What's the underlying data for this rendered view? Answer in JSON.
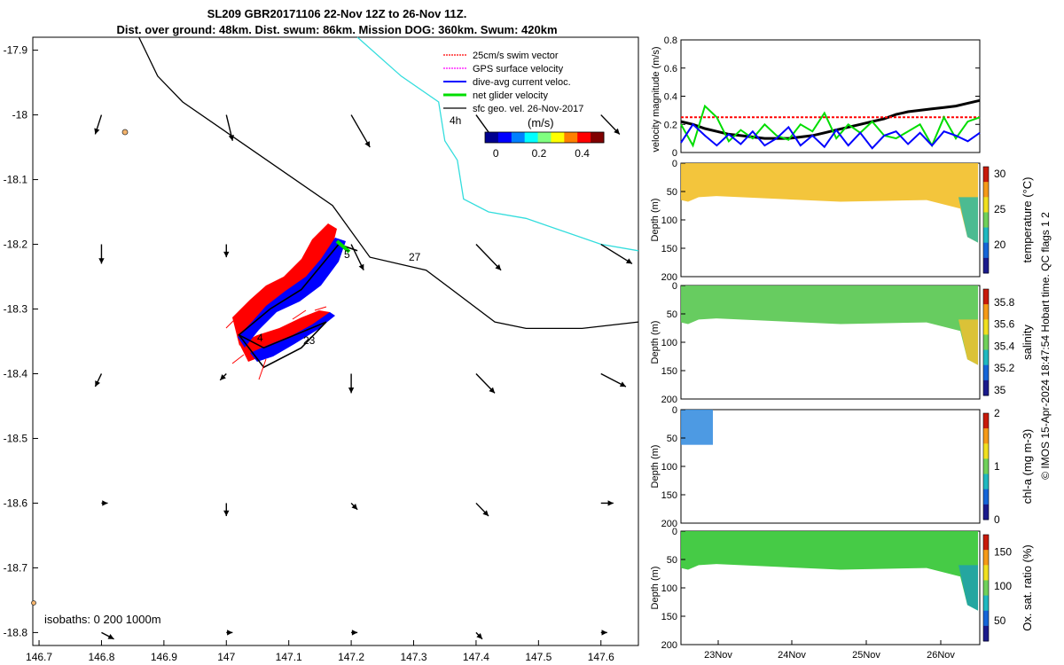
{
  "header": {
    "title_line1": "SL209 GBR20171106 22-Nov 12Z to 26-Nov 11Z.",
    "title_line2": "Dist. over ground: 48km. Dist. swum: 86km. Mission DOG: 360km. Swum: 420km"
  },
  "map": {
    "xlim": [
      146.69,
      147.66
    ],
    "ylim": [
      -18.82,
      -17.88
    ],
    "x_ticks": [
      "146.7",
      "146.8",
      "146.9",
      "147",
      "147.1",
      "147.2",
      "147.3",
      "147.4",
      "147.5",
      "147.6"
    ],
    "x_tick_values": [
      146.7,
      146.8,
      146.9,
      147.0,
      147.1,
      147.2,
      147.3,
      147.4,
      147.5,
      147.6
    ],
    "y_ticks": [
      "-17.9",
      "-18",
      "-18.1",
      "-18.2",
      "-18.3",
      "-18.4",
      "-18.5",
      "-18.6",
      "-18.7",
      "-18.8"
    ],
    "y_tick_values": [
      -17.9,
      -18.0,
      -18.1,
      -18.2,
      -18.3,
      -18.4,
      -18.5,
      -18.6,
      -18.7,
      -18.8
    ],
    "isobaths_label": "isobaths: 0   200  1000m",
    "contour_labels": [
      "4h",
      "27",
      "4",
      "23",
      "5"
    ],
    "legend": [
      {
        "label": "25cm/s swim vector",
        "color": "#ff0000"
      },
      {
        "label": "GPS surface velocity",
        "color": "#ff00ff"
      },
      {
        "label": "dive-avg current veloc.",
        "color": "#0000ff"
      },
      {
        "label": "net glider velocity",
        "color": "#00dd00"
      },
      {
        "label": "sfc geo. vel. 26-Nov-2017",
        "color": "#000000"
      }
    ],
    "colorbar": {
      "unit": "(m/s)",
      "ticks": [
        "0",
        "0.2",
        "0.4"
      ],
      "range": [
        -0.05,
        0.5
      ]
    },
    "colors": {
      "contour_200": "#000000",
      "contour_1000": "#33dddd",
      "glider_red": "#ff0000",
      "glider_blue": "#0000ff"
    }
  },
  "velocity_panel": {
    "ylabel": "velocity magnitude (m/s)",
    "yticks": [
      "0",
      "0.2",
      "0.4",
      "0.6",
      "0.8"
    ],
    "ylim": [
      0,
      0.8
    ],
    "series": [
      {
        "color": "#000000",
        "values": [
          0.22,
          0.2,
          0.17,
          0.15,
          0.13,
          0.12,
          0.11,
          0.1,
          0.1,
          0.1,
          0.11,
          0.12,
          0.14,
          0.16,
          0.18,
          0.2,
          0.22,
          0.24,
          0.27,
          0.29,
          0.3,
          0.31,
          0.32,
          0.33,
          0.35,
          0.37
        ]
      },
      {
        "color": "#ff0000",
        "values": [
          0.25,
          0.25,
          0.25,
          0.25,
          0.25,
          0.25,
          0.25,
          0.25,
          0.25,
          0.25,
          0.25,
          0.25,
          0.25,
          0.25,
          0.25,
          0.25,
          0.25,
          0.25,
          0.25,
          0.25,
          0.25,
          0.25,
          0.25,
          0.25,
          0.25,
          0.25
        ]
      },
      {
        "color": "#00dd00",
        "values": [
          0.2,
          0.05,
          0.33,
          0.25,
          0.08,
          0.16,
          0.1,
          0.2,
          0.12,
          0.09,
          0.2,
          0.15,
          0.28,
          0.1,
          0.2,
          0.14,
          0.22,
          0.12,
          0.1,
          0.15,
          0.2,
          0.05,
          0.25,
          0.1,
          0.22,
          0.25
        ]
      },
      {
        "color": "#0000ff",
        "values": [
          0.07,
          0.2,
          0.12,
          0.05,
          0.13,
          0.06,
          0.15,
          0.05,
          0.1,
          0.18,
          0.05,
          0.12,
          0.04,
          0.16,
          0.05,
          0.14,
          0.03,
          0.12,
          0.15,
          0.06,
          0.14,
          0.05,
          0.15,
          0.12,
          0.08,
          0.14
        ]
      }
    ]
  },
  "profile_panels": [
    {
      "name": "temperature",
      "label": "temperature (°C)",
      "cbar_ticks": [
        "30",
        "25",
        "20"
      ],
      "cbar_values": [
        30,
        25,
        20
      ],
      "cbar_range": [
        16,
        31
      ],
      "fill": "#f2c232",
      "deep": "#2eb8a0"
    },
    {
      "name": "salinity",
      "label": "salinity",
      "cbar_ticks": [
        "35.8",
        "35.6",
        "35.4",
        "35.2",
        "35"
      ],
      "cbar_values": [
        35.8,
        35.6,
        35.4,
        35.2,
        35.0
      ],
      "cbar_range": [
        34.95,
        35.92
      ],
      "fill": "#5fc957",
      "deep": "#f0c030"
    },
    {
      "name": "chl-a",
      "label": "chl-a (mg m-3)",
      "cbar_ticks": [
        "2",
        "1",
        "0"
      ],
      "cbar_values": [
        2,
        1,
        0
      ],
      "cbar_range": [
        0,
        2
      ],
      "fill": "#3a8fe0",
      "deep": "#3a8fe0"
    },
    {
      "name": "ox-sat",
      "label": "Ox. sat. ratio (%)",
      "cbar_ticks": [
        "150",
        "100",
        "50"
      ],
      "cbar_values": [
        150,
        100,
        50
      ],
      "cbar_range": [
        20,
        175
      ],
      "fill": "#3cc83c",
      "deep": "#20a0b0"
    }
  ],
  "depth_axis": {
    "ylabel": "Depth (m)",
    "ticks": [
      "0",
      "50",
      "100",
      "150",
      "200"
    ],
    "values": [
      0,
      50,
      100,
      150,
      200
    ]
  },
  "time_axis": {
    "labels": [
      "23Nov",
      "24Nov",
      "25Nov",
      "26Nov"
    ]
  },
  "credit": "© IMOS 15-Apr-2024 18:47:54 Hobart time. QC flags 1  2",
  "chart_data": {
    "type": "scatter",
    "title": "SL209 GBR20171106 22-Nov 12Z to 26-Nov 11Z.",
    "subtitle": "Dist. over ground: 48km. Dist. swum: 86km. Mission DOG: 360km. Swum: 420km",
    "xlim": [
      146.69,
      147.66
    ],
    "ylim": [
      -18.82,
      -17.88
    ],
    "vectors": [
      {
        "x": 146.8,
        "y": -18.0,
        "dx": -0.01,
        "dy": -0.03
      },
      {
        "x": 147.0,
        "y": -18.0,
        "dx": 0.01,
        "dy": -0.04
      },
      {
        "x": 147.2,
        "y": -18.0,
        "dx": 0.03,
        "dy": -0.05
      },
      {
        "x": 147.4,
        "y": -18.0,
        "dx": 0.03,
        "dy": -0.04
      },
      {
        "x": 147.6,
        "y": -18.0,
        "dx": 0.03,
        "dy": -0.03
      },
      {
        "x": 146.8,
        "y": -18.2,
        "dx": 0.0,
        "dy": -0.03
      },
      {
        "x": 147.0,
        "y": -18.2,
        "dx": 0.0,
        "dy": -0.02
      },
      {
        "x": 147.2,
        "y": -18.2,
        "dx": 0.02,
        "dy": -0.04
      },
      {
        "x": 147.4,
        "y": -18.2,
        "dx": 0.04,
        "dy": -0.04
      },
      {
        "x": 147.6,
        "y": -18.2,
        "dx": 0.05,
        "dy": -0.03
      },
      {
        "x": 146.8,
        "y": -18.4,
        "dx": -0.01,
        "dy": -0.02
      },
      {
        "x": 147.0,
        "y": -18.4,
        "dx": -0.01,
        "dy": -0.01
      },
      {
        "x": 147.2,
        "y": -18.4,
        "dx": 0.0,
        "dy": -0.03
      },
      {
        "x": 147.4,
        "y": -18.4,
        "dx": 0.03,
        "dy": -0.03
      },
      {
        "x": 147.6,
        "y": -18.4,
        "dx": 0.04,
        "dy": -0.02
      },
      {
        "x": 146.8,
        "y": -18.6,
        "dx": 0.01,
        "dy": -0.0
      },
      {
        "x": 147.0,
        "y": -18.6,
        "dx": 0.0,
        "dy": -0.02
      },
      {
        "x": 147.2,
        "y": -18.6,
        "dx": 0.01,
        "dy": -0.01
      },
      {
        "x": 147.4,
        "y": -18.6,
        "dx": 0.02,
        "dy": -0.02
      },
      {
        "x": 147.6,
        "y": -18.6,
        "dx": 0.02,
        "dy": 0.0
      },
      {
        "x": 146.8,
        "y": -18.8,
        "dx": 0.02,
        "dy": -0.01
      },
      {
        "x": 147.0,
        "y": -18.8,
        "dx": 0.01,
        "dy": 0.0
      },
      {
        "x": 147.2,
        "y": -18.8,
        "dx": 0.01,
        "dy": -0.0
      },
      {
        "x": 147.4,
        "y": -18.8,
        "dx": 0.01,
        "dy": -0.01
      },
      {
        "x": 147.6,
        "y": -18.8,
        "dx": 0.01,
        "dy": -0.0
      }
    ],
    "isobath_200m": [
      [
        146.86,
        -17.88
      ],
      [
        146.89,
        -17.94
      ],
      [
        146.93,
        -17.98
      ],
      [
        147.02,
        -18.04
      ],
      [
        147.17,
        -18.14
      ],
      [
        147.23,
        -18.22
      ],
      [
        147.32,
        -18.24
      ],
      [
        147.43,
        -18.32
      ],
      [
        147.48,
        -18.33
      ],
      [
        147.57,
        -18.33
      ],
      [
        147.66,
        -18.32
      ]
    ],
    "isobath_1000m": [
      [
        147.21,
        -17.88
      ],
      [
        147.28,
        -17.94
      ],
      [
        147.34,
        -17.98
      ],
      [
        147.35,
        -18.04
      ],
      [
        147.37,
        -18.07
      ],
      [
        147.38,
        -18.13
      ],
      [
        147.42,
        -18.15
      ],
      [
        147.48,
        -18.16
      ],
      [
        147.6,
        -18.2
      ],
      [
        147.66,
        -18.21
      ]
    ],
    "glider_track": [
      [
        147.02,
        -18.34
      ],
      [
        147.06,
        -18.39
      ],
      [
        147.12,
        -18.36
      ],
      [
        147.16,
        -18.32
      ],
      [
        147.06,
        -18.36
      ],
      [
        147.02,
        -18.34
      ],
      [
        147.07,
        -18.3
      ],
      [
        147.12,
        -18.27
      ],
      [
        147.18,
        -18.2
      ],
      [
        147.21,
        -18.21
      ]
    ]
  }
}
